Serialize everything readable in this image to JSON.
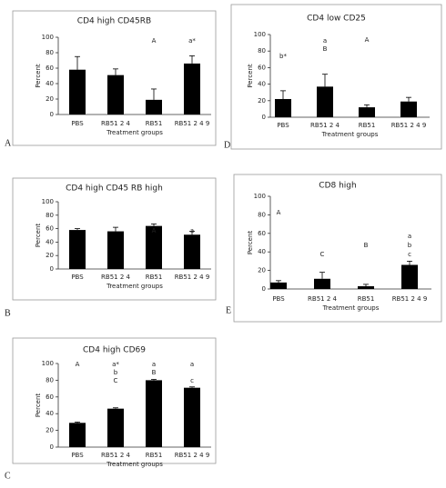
{
  "chart_data": [
    {
      "type": "bar",
      "panel": "A",
      "title": "CD4 high CD45RB",
      "xlabel": "Treatment groups",
      "ylabel": "Percent",
      "categories": [
        "PBS",
        "RB51 2 4",
        "RB51",
        "RB51 2 4 9"
      ],
      "values": [
        58,
        51,
        19,
        66
      ],
      "errors": [
        17,
        8,
        14,
        10
      ],
      "annotations": [
        [],
        [],
        [
          "A"
        ],
        [
          "a*"
        ]
      ],
      "color": "#000000",
      "ylim": [
        0,
        100
      ],
      "yticks": [
        0,
        20,
        40,
        60,
        80,
        100
      ]
    },
    {
      "type": "bar",
      "panel": "D",
      "title": "CD4 low CD25",
      "xlabel": "Treatment groups",
      "ylabel": "Percent",
      "categories": [
        "PBS",
        "RB51 2 4",
        "RB51",
        "RB51 2 4 9"
      ],
      "values": [
        22,
        37,
        12,
        19
      ],
      "errors": [
        10,
        15,
        3,
        5
      ],
      "annotations": [
        [
          "b*"
        ],
        [
          "a",
          "B"
        ],
        [
          "A"
        ],
        []
      ],
      "color": "#000000",
      "ylim": [
        0,
        100
      ],
      "yticks": [
        0,
        20,
        40,
        60,
        80,
        100
      ]
    },
    {
      "type": "bar",
      "panel": "B",
      "title": "CD4 high CD45 RB high",
      "xlabel": "Treatment groups",
      "ylabel": "Percent",
      "categories": [
        "PBS",
        "RB51 2 4",
        "RB51",
        "RB51 2 4 9"
      ],
      "values": [
        58,
        56,
        64,
        51
      ],
      "errors": [
        2,
        6,
        3,
        5
      ],
      "annotations": [
        [],
        [],
        [
          "A"
        ],
        [
          "a"
        ]
      ],
      "color": "#000000",
      "ylim": [
        0,
        100
      ],
      "yticks": [
        0,
        20,
        40,
        60,
        80,
        100
      ]
    },
    {
      "type": "bar",
      "panel": "E",
      "title": "CD8 high",
      "xlabel": "Treatment groups",
      "ylabel": "Percent",
      "categories": [
        "PBS",
        "RB51 2 4",
        "RB51",
        "RB51 2 4 9"
      ],
      "values": [
        7,
        11,
        3,
        26
      ],
      "errors": [
        2,
        7,
        2,
        4
      ],
      "annotations": [
        [
          "A"
        ],
        [
          "C"
        ],
        [
          "B"
        ],
        [
          "a",
          "b",
          "c"
        ]
      ],
      "color": "#000000",
      "ylim": [
        0,
        100
      ],
      "yticks": [
        0,
        20,
        40,
        60,
        80,
        100
      ]
    },
    {
      "type": "bar",
      "panel": "C",
      "title": "CD4 high CD69",
      "xlabel": "Treatment groups",
      "ylabel": "Percent",
      "categories": [
        "PBS",
        "RB51 2 4",
        "RB51",
        "RB51 2 4 9"
      ],
      "values": [
        29,
        46,
        80,
        71
      ],
      "errors": [
        1,
        1,
        1,
        1
      ],
      "annotations": [
        [
          "A"
        ],
        [
          "a*",
          "b",
          "C"
        ],
        [
          "a",
          "B"
        ],
        [
          "a",
          "c"
        ]
      ],
      "color": "#000000",
      "ylim": [
        0,
        100
      ],
      "yticks": [
        0,
        20,
        40,
        60,
        80,
        100
      ]
    }
  ]
}
